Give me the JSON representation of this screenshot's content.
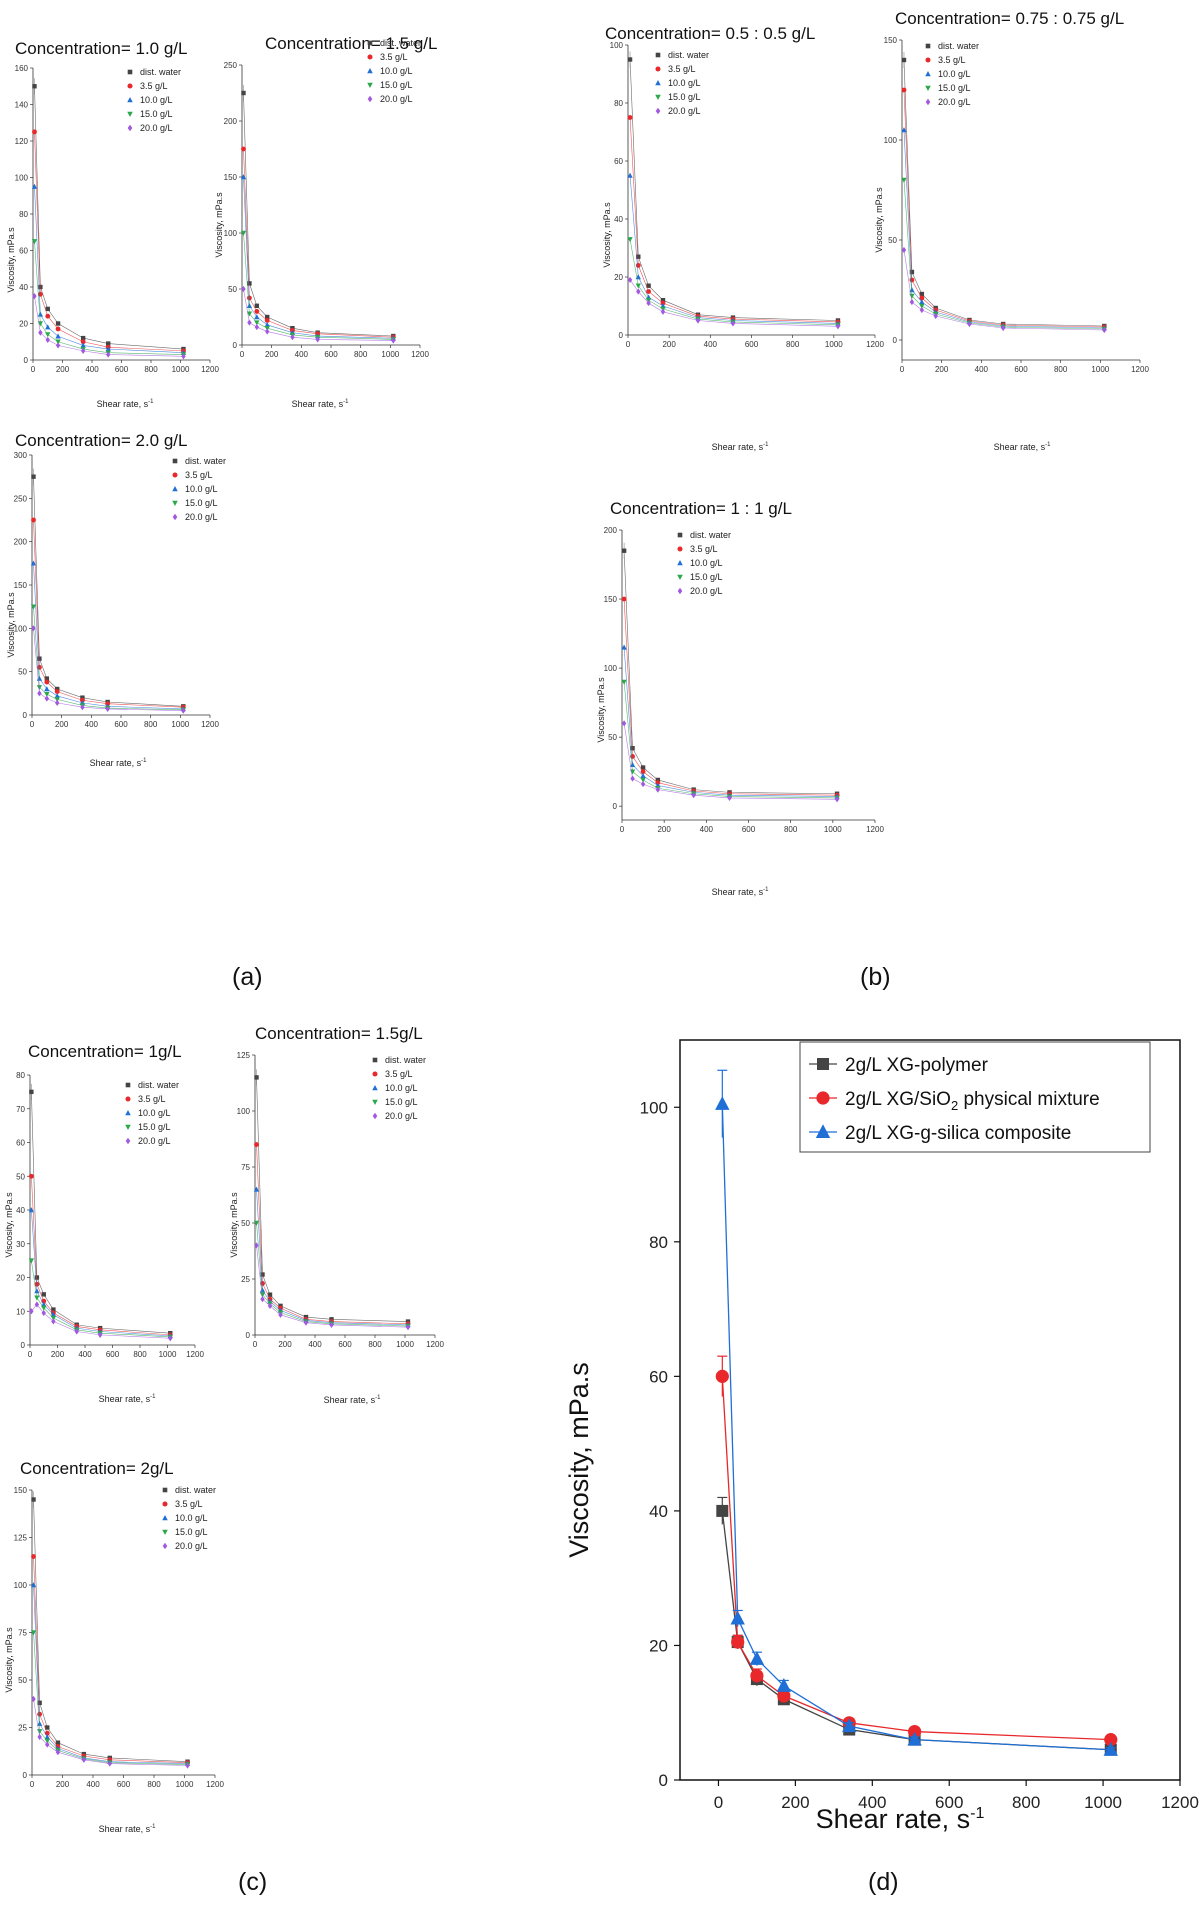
{
  "series_labels": [
    "dist. water",
    "3.5 g/L",
    "10.0 g/L",
    "15.0 g/L",
    "20.0 g/L"
  ],
  "series_colors": [
    "#444444",
    "#e8282a",
    "#1f6fd6",
    "#2aa84a",
    "#a259e0"
  ],
  "x_shear": [
    10,
    50,
    100,
    170,
    340,
    510,
    1020
  ],
  "panel_labels": {
    "a": "(a)",
    "b": "(b)",
    "c": "(c)",
    "d": "(d)"
  },
  "axis_labels": {
    "x_small": "Shear rate, s",
    "x_sup": "-1",
    "y_small": "Viscosity, mPa.s",
    "x_big": "Shear rate, s",
    "y_big": "Viscosity, mPa.s"
  },
  "chart_data": [
    {
      "id": "a1",
      "type": "line",
      "title": "Concentration= 1.0 g/L",
      "ylim": [
        0,
        160
      ],
      "yticks": [
        0,
        20,
        40,
        60,
        80,
        100,
        120,
        140,
        160
      ],
      "xlim": [
        0,
        1200
      ],
      "xticks": [
        0,
        200,
        400,
        600,
        800,
        1000,
        1200
      ],
      "series": [
        {
          "name": "dist. water",
          "values": [
            150,
            40,
            28,
            20,
            12,
            9,
            6
          ]
        },
        {
          "name": "3.5 g/L",
          "values": [
            125,
            36,
            24,
            17,
            10,
            7,
            5
          ]
        },
        {
          "name": "10.0 g/L",
          "values": [
            95,
            25,
            18,
            13,
            8,
            6,
            4
          ]
        },
        {
          "name": "15.0 g/L",
          "values": [
            65,
            20,
            14,
            10,
            6,
            4,
            3
          ]
        },
        {
          "name": "20.0 g/L",
          "values": [
            35,
            15,
            11,
            8,
            5,
            3,
            2
          ]
        }
      ]
    },
    {
      "id": "a2",
      "type": "line",
      "title": "Concentration= 1.5 g/L",
      "ylim": [
        0,
        250
      ],
      "yticks": [
        0,
        50,
        100,
        150,
        200,
        250
      ],
      "xlim": [
        0,
        1200
      ],
      "xticks": [
        0,
        200,
        400,
        600,
        800,
        1000,
        1200
      ],
      "series": [
        {
          "name": "dist. water",
          "values": [
            225,
            55,
            35,
            25,
            15,
            11,
            8
          ]
        },
        {
          "name": "3.5 g/L",
          "values": [
            175,
            42,
            30,
            22,
            13,
            10,
            7
          ]
        },
        {
          "name": "10.0 g/L",
          "values": [
            150,
            35,
            25,
            18,
            11,
            8,
            6
          ]
        },
        {
          "name": "15.0 g/L",
          "values": [
            100,
            28,
            20,
            15,
            9,
            7,
            5
          ]
        },
        {
          "name": "20.0 g/L",
          "values": [
            50,
            20,
            16,
            12,
            7,
            5,
            4
          ]
        }
      ]
    },
    {
      "id": "a3",
      "type": "line",
      "title": "Concentration= 2.0 g/L",
      "ylim": [
        0,
        300
      ],
      "yticks": [
        0,
        50,
        100,
        150,
        200,
        250,
        300
      ],
      "xlim": [
        0,
        1200
      ],
      "xticks": [
        0,
        200,
        400,
        600,
        800,
        1000,
        1200
      ],
      "series": [
        {
          "name": "dist. water",
          "values": [
            275,
            65,
            42,
            30,
            20,
            15,
            10
          ]
        },
        {
          "name": "3.5 g/L",
          "values": [
            225,
            55,
            38,
            27,
            17,
            13,
            9
          ]
        },
        {
          "name": "10.0 g/L",
          "values": [
            175,
            42,
            30,
            22,
            14,
            10,
            7
          ]
        },
        {
          "name": "15.0 g/L",
          "values": [
            125,
            32,
            24,
            18,
            11,
            8,
            6
          ]
        },
        {
          "name": "20.0 g/L",
          "values": [
            100,
            25,
            19,
            14,
            9,
            7,
            5
          ]
        }
      ]
    },
    {
      "id": "b1",
      "type": "line",
      "title": "Concentration= 0.5 : 0.5 g/L",
      "ylim": [
        0,
        100
      ],
      "yticks": [
        0,
        20,
        40,
        60,
        80,
        100
      ],
      "xlim": [
        0,
        1200
      ],
      "xticks": [
        0,
        200,
        400,
        600,
        800,
        1000,
        1200
      ],
      "series": [
        {
          "name": "dist. water",
          "values": [
            95,
            27,
            17,
            12,
            7,
            6,
            5
          ]
        },
        {
          "name": "3.5 g/L",
          "values": [
            75,
            24,
            15,
            11,
            6.5,
            5.5,
            4.5
          ]
        },
        {
          "name": "10.0 g/L",
          "values": [
            55,
            20,
            13,
            10,
            6,
            5,
            4
          ]
        },
        {
          "name": "15.0 g/L",
          "values": [
            33,
            17,
            12,
            9,
            5.5,
            4.5,
            3.5
          ]
        },
        {
          "name": "20.0 g/L",
          "values": [
            19,
            15,
            11,
            8,
            5,
            4,
            3
          ]
        }
      ]
    },
    {
      "id": "b2",
      "type": "line",
      "title": "Concentration= 0.75 : 0.75 g/L",
      "ylim": [
        -10,
        150
      ],
      "yticks": [
        0,
        50,
        100,
        150
      ],
      "xlim": [
        0,
        1200
      ],
      "xticks": [
        0,
        200,
        400,
        600,
        800,
        1000,
        1200
      ],
      "series": [
        {
          "name": "dist. water",
          "values": [
            140,
            34,
            23,
            16,
            10,
            8,
            7
          ]
        },
        {
          "name": "3.5 g/L",
          "values": [
            125,
            30,
            21,
            15,
            9.5,
            7.5,
            6.5
          ]
        },
        {
          "name": "10.0 g/L",
          "values": [
            105,
            25,
            19,
            14,
            9,
            7,
            6
          ]
        },
        {
          "name": "15.0 g/L",
          "values": [
            80,
            22,
            17,
            13,
            8.5,
            6.5,
            5.5
          ]
        },
        {
          "name": "20.0 g/L",
          "values": [
            45,
            19,
            15,
            12,
            8,
            6,
            5
          ]
        }
      ]
    },
    {
      "id": "b3",
      "type": "line",
      "title": "Concentration= 1 : 1 g/L",
      "ylim": [
        -10,
        200
      ],
      "yticks": [
        0,
        50,
        100,
        150,
        200
      ],
      "xlim": [
        0,
        1200
      ],
      "xticks": [
        0,
        200,
        400,
        600,
        800,
        1000,
        1200
      ],
      "series": [
        {
          "name": "dist. water",
          "values": [
            185,
            42,
            28,
            19,
            12,
            10,
            9
          ]
        },
        {
          "name": "3.5 g/L",
          "values": [
            150,
            36,
            25,
            17,
            11,
            9,
            8
          ]
        },
        {
          "name": "10.0 g/L",
          "values": [
            115,
            30,
            22,
            15,
            10,
            8,
            7
          ]
        },
        {
          "name": "15.0 g/L",
          "values": [
            90,
            25,
            19,
            13,
            9,
            7,
            6
          ]
        },
        {
          "name": "20.0 g/L",
          "values": [
            60,
            20,
            16,
            12,
            8,
            6,
            5
          ]
        }
      ]
    },
    {
      "id": "c1",
      "type": "line",
      "title": "Concentration= 1g/L",
      "ylim": [
        0,
        80
      ],
      "yticks": [
        0,
        10,
        20,
        30,
        40,
        50,
        60,
        70,
        80
      ],
      "xlim": [
        0,
        1200
      ],
      "xticks": [
        0,
        200,
        400,
        600,
        800,
        1000,
        1200
      ],
      "series": [
        {
          "name": "dist. water",
          "values": [
            75,
            20,
            15,
            10.5,
            6,
            5,
            3.5
          ]
        },
        {
          "name": "3.5 g/L",
          "values": [
            50,
            18,
            13,
            9.5,
            5.5,
            4.5,
            3
          ]
        },
        {
          "name": "10.0 g/L",
          "values": [
            40,
            16,
            12,
            9,
            5,
            4,
            2.7
          ]
        },
        {
          "name": "15.0 g/L",
          "values": [
            25,
            14,
            11,
            8,
            4.5,
            3.5,
            2.4
          ]
        },
        {
          "name": "20.0 g/L",
          "values": [
            10,
            12,
            9.5,
            7,
            4,
            3,
            2
          ]
        }
      ]
    },
    {
      "id": "c2",
      "type": "line",
      "title": "Concentration= 1.5g/L",
      "ylim": [
        0,
        125
      ],
      "yticks": [
        0,
        25,
        50,
        75,
        100,
        125
      ],
      "xlim": [
        0,
        1200
      ],
      "xticks": [
        0,
        200,
        400,
        600,
        800,
        1000,
        1200
      ],
      "series": [
        {
          "name": "dist. water",
          "values": [
            115,
            27,
            18,
            13,
            8,
            7,
            6
          ]
        },
        {
          "name": "3.5 g/L",
          "values": [
            85,
            23,
            16,
            12,
            7,
            6,
            5
          ]
        },
        {
          "name": "10.0 g/L",
          "values": [
            65,
            20,
            15,
            11,
            6.5,
            5.5,
            4.5
          ]
        },
        {
          "name": "15.0 g/L",
          "values": [
            50,
            18,
            14,
            10,
            6,
            5,
            4
          ]
        },
        {
          "name": "20.0 g/L",
          "values": [
            40,
            16,
            13,
            9,
            5.5,
            4.5,
            3.5
          ]
        }
      ]
    },
    {
      "id": "c3",
      "type": "line",
      "title": "Concentration= 2g/L",
      "ylim": [
        0,
        150
      ],
      "yticks": [
        0,
        25,
        50,
        75,
        100,
        125,
        150
      ],
      "xlim": [
        0,
        1200
      ],
      "xticks": [
        0,
        200,
        400,
        600,
        800,
        1000,
        1200
      ],
      "series": [
        {
          "name": "dist. water",
          "values": [
            145,
            38,
            25,
            17,
            11,
            9,
            7
          ]
        },
        {
          "name": "3.5 g/L",
          "values": [
            115,
            32,
            22,
            15,
            10,
            8,
            6.5
          ]
        },
        {
          "name": "10.0 g/L",
          "values": [
            100,
            27,
            20,
            14,
            9,
            7,
            6
          ]
        },
        {
          "name": "15.0 g/L",
          "values": [
            75,
            23,
            18,
            13,
            8.5,
            6.5,
            5.5
          ]
        },
        {
          "name": "20.0 g/L",
          "values": [
            40,
            20,
            16,
            12,
            8,
            6,
            5
          ]
        }
      ]
    },
    {
      "id": "d",
      "type": "line",
      "ylim": [
        0,
        110
      ],
      "yticks": [
        0,
        20,
        40,
        60,
        80,
        100
      ],
      "xlim": [
        -100,
        1200
      ],
      "xticks": [
        0,
        200,
        400,
        600,
        800,
        1000,
        1200
      ],
      "series": [
        {
          "name": "2g/L XG-polymer",
          "values": [
            40,
            20.5,
            15,
            12,
            7.5,
            6,
            4.5
          ],
          "errors": [
            2,
            1,
            1,
            0.8,
            0.5,
            0.4,
            0.3
          ]
        },
        {
          "name": "2g/L XG/SiO2 physical mixture",
          "values": [
            60,
            20.5,
            15.5,
            12.5,
            8.5,
            7.2,
            6
          ],
          "errors": [
            3,
            1,
            1,
            0.8,
            0.5,
            0.4,
            0.3
          ]
        },
        {
          "name": "2g/L XG-g-silica composite",
          "values": [
            100.5,
            24,
            18,
            14,
            8,
            6,
            4.5
          ],
          "errors": [
            5,
            1.2,
            1,
            0.8,
            0.5,
            0.4,
            0.3
          ]
        }
      ],
      "legend": {
        "l1": "2g/L XG-polymer",
        "l2_pre": "2g/L XG/SiO",
        "l2_sub": "2",
        "l2_post": " physical mixture",
        "l3": "2g/L XG-g-silica composite"
      }
    }
  ]
}
